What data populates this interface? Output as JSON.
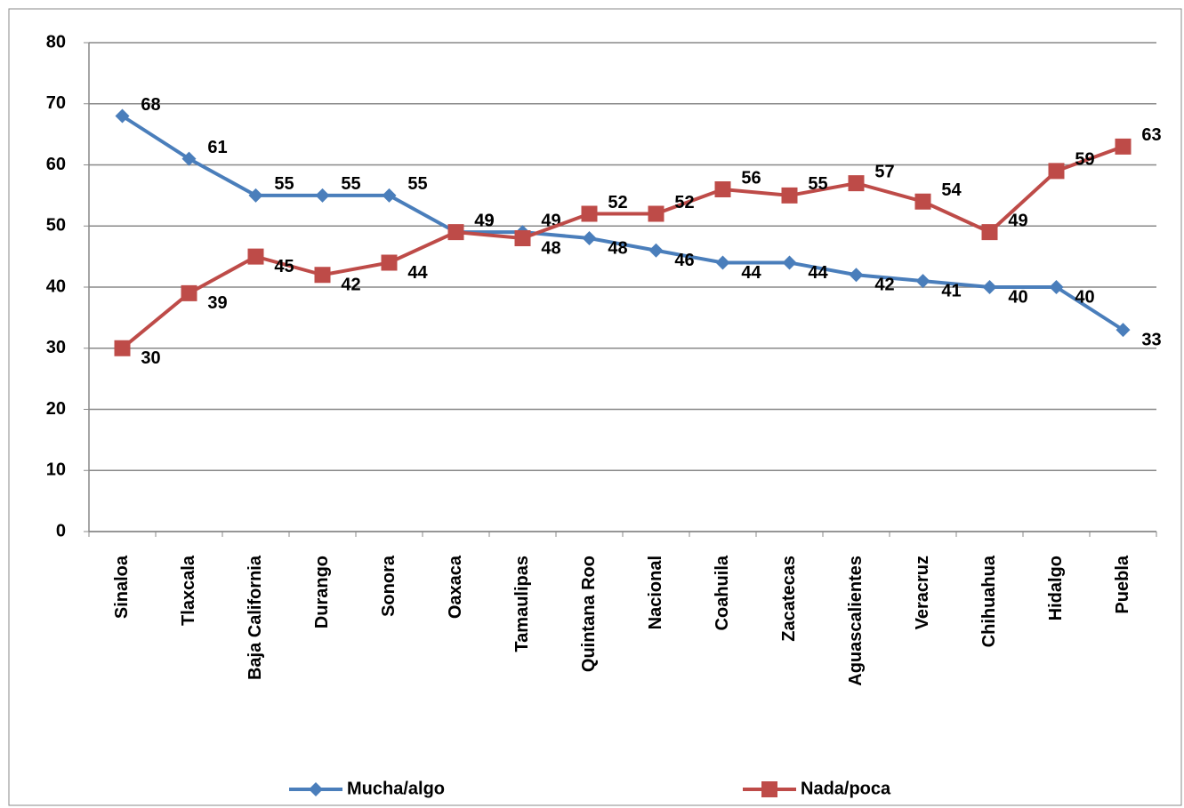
{
  "chart_data": {
    "type": "line",
    "categories": [
      "Sinaloa",
      "Tlaxcala",
      "Baja California",
      "Durango",
      "Sonora",
      "Oaxaca",
      "Tamaulipas",
      "Quintana Roo",
      "Nacional",
      "Coahuila",
      "Zacatecas",
      "Aguascalientes",
      "Veracruz",
      "Chihuahua",
      "Hidalgo",
      "Puebla"
    ],
    "series": [
      {
        "name": "Mucha/algo",
        "color": "#4a7ebb",
        "marker": "diamond",
        "values": [
          68,
          61,
          55,
          55,
          55,
          49,
          49,
          48,
          46,
          44,
          44,
          42,
          41,
          40,
          40,
          33
        ]
      },
      {
        "name": "Nada/poca",
        "color": "#be4b48",
        "marker": "square",
        "values": [
          30,
          39,
          45,
          42,
          44,
          49,
          48,
          52,
          52,
          56,
          55,
          57,
          54,
          49,
          59,
          63
        ]
      }
    ],
    "ylim": [
      0,
      80
    ],
    "yticks": [
      0,
      10,
      20,
      30,
      40,
      50,
      60,
      70,
      80
    ],
    "grid": true,
    "legend": "bottom"
  }
}
